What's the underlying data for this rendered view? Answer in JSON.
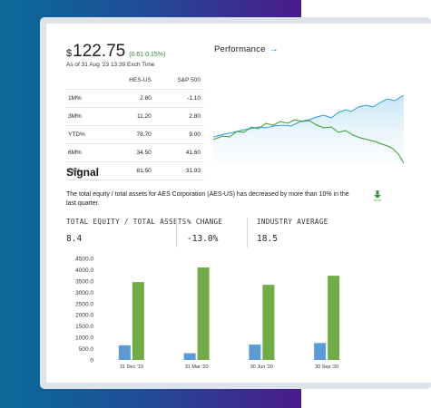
{
  "quote": {
    "currency": "$",
    "price": "122.75",
    "change": "(0.61  0.15%)",
    "as_of": "As of 31 Aug '23 13:39 Exch Time"
  },
  "perf_table": {
    "headers": [
      "",
      "HES-US",
      "S&P 500"
    ],
    "rows": [
      [
        "1M%",
        "2.80",
        "-1.10"
      ],
      [
        "3M%",
        "11.20",
        "2.80"
      ],
      [
        "YTD%",
        "78.70",
        "9.00"
      ],
      [
        "6M%",
        "34.50",
        "41.60"
      ],
      [
        "1Y%",
        "81.50",
        "31.93"
      ]
    ]
  },
  "performance": {
    "label": "Performance",
    "arrow": "→"
  },
  "signal": {
    "title": "Signal",
    "text": "The total equity / total assets for AES Corporation (AES-US) has decreased by more than 10% in the last quarter."
  },
  "metrics": [
    {
      "label": "TOTAL EQUITY / TOTAL ASSETS",
      "value": "8.4"
    },
    {
      "label": "% CHANGE",
      "value": "-13.0%"
    },
    {
      "label": "INDUSTRY AVERAGE",
      "value": "18.5"
    }
  ],
  "colors": {
    "blue": "#5b9bd5",
    "green": "#70ad47",
    "spark_blue": "#2a9fd8",
    "spark_green": "#3a9a2c"
  },
  "chart_data": {
    "type": "bar",
    "categories": [
      "31 Dec '19",
      "31 Mar '20",
      "30 Jun '20",
      "30 Sep '20"
    ],
    "series": [
      {
        "values": [
          650,
          300,
          680,
          750
        ]
      },
      {
        "values": [
          3450,
          4100,
          3330,
          3730
        ]
      }
    ],
    "ylim": [
      0,
      4500
    ],
    "yticks": [
      "0",
      "500.0",
      "1000.0",
      "1500.0",
      "2000.0",
      "2500.0",
      "3000.0",
      "3500.0",
      "4000.0",
      "4500.0"
    ],
    "grid": false
  }
}
